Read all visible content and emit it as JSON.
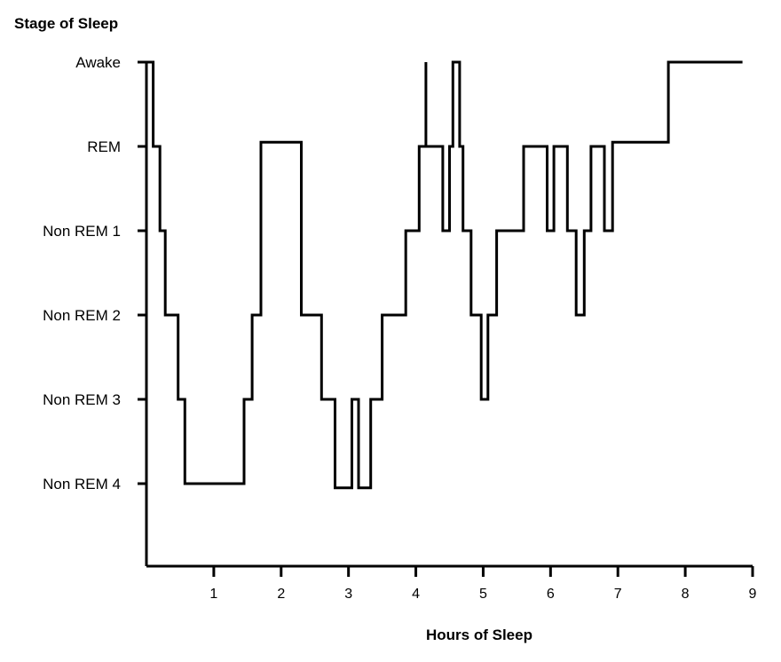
{
  "chart_data": {
    "type": "line",
    "title": "",
    "ylabel": "Stage of Sleep",
    "xlabel": "Hours of Sleep",
    "x_ticks": [
      1,
      2,
      3,
      4,
      5,
      6,
      7,
      8,
      9
    ],
    "xlim": [
      0,
      9
    ],
    "y_categories": [
      "Non REM 4",
      "Non REM 3",
      "Non REM 2",
      "Non REM 1",
      "REM",
      "Awake"
    ],
    "y_values": [
      1,
      2,
      3,
      4,
      5,
      6
    ],
    "grid": false,
    "legend": false,
    "line_color": "#000000",
    "series": [
      {
        "values": [
          [
            0.0,
            6
          ],
          [
            0.1,
            6
          ],
          [
            0.1,
            5
          ],
          [
            0.2,
            5
          ],
          [
            0.2,
            4
          ],
          [
            0.28,
            4
          ],
          [
            0.28,
            3
          ],
          [
            0.47,
            3
          ],
          [
            0.47,
            2
          ],
          [
            0.57,
            2
          ],
          [
            0.57,
            1
          ],
          [
            1.45,
            1
          ],
          [
            1.45,
            2
          ],
          [
            1.57,
            2
          ],
          [
            1.57,
            3
          ],
          [
            1.7,
            3
          ],
          [
            1.7,
            5.05
          ],
          [
            2.3,
            5.05
          ],
          [
            2.3,
            3
          ],
          [
            2.6,
            3
          ],
          [
            2.6,
            2
          ],
          [
            2.8,
            2
          ],
          [
            2.8,
            0.95
          ],
          [
            3.05,
            0.95
          ],
          [
            3.05,
            2
          ],
          [
            3.15,
            2
          ],
          [
            3.15,
            0.95
          ],
          [
            3.33,
            0.95
          ],
          [
            3.33,
            2
          ],
          [
            3.5,
            2
          ],
          [
            3.5,
            3
          ],
          [
            3.85,
            3
          ],
          [
            3.85,
            4
          ],
          [
            4.05,
            4
          ],
          [
            4.05,
            5
          ],
          [
            4.15,
            5
          ],
          [
            4.15,
            6
          ],
          [
            4.15,
            5
          ],
          [
            4.4,
            5
          ],
          [
            4.4,
            4
          ],
          [
            4.5,
            4
          ],
          [
            4.5,
            5
          ],
          [
            4.55,
            5
          ],
          [
            4.55,
            6
          ],
          [
            4.65,
            6
          ],
          [
            4.65,
            5
          ],
          [
            4.7,
            5
          ],
          [
            4.7,
            4
          ],
          [
            4.82,
            4
          ],
          [
            4.82,
            3
          ],
          [
            4.97,
            3
          ],
          [
            4.97,
            2
          ],
          [
            5.07,
            2
          ],
          [
            5.07,
            3
          ],
          [
            5.2,
            3
          ],
          [
            5.2,
            4
          ],
          [
            5.6,
            4
          ],
          [
            5.6,
            5
          ],
          [
            5.95,
            5
          ],
          [
            5.95,
            4
          ],
          [
            6.05,
            4
          ],
          [
            6.05,
            5
          ],
          [
            6.25,
            5
          ],
          [
            6.25,
            4
          ],
          [
            6.38,
            4
          ],
          [
            6.38,
            3
          ],
          [
            6.5,
            3
          ],
          [
            6.5,
            4
          ],
          [
            6.6,
            4
          ],
          [
            6.6,
            5
          ],
          [
            6.8,
            5
          ],
          [
            6.8,
            4
          ],
          [
            6.92,
            4
          ],
          [
            6.92,
            5.05
          ],
          [
            7.75,
            5.05
          ],
          [
            7.75,
            6
          ],
          [
            8.85,
            6
          ]
        ]
      }
    ]
  }
}
